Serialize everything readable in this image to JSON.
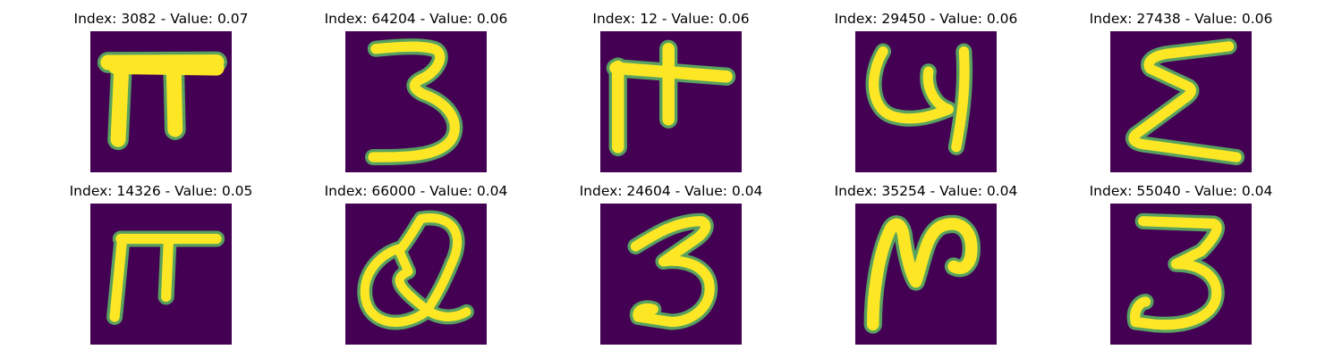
{
  "colors": {
    "background": "#440154",
    "low": "#21918c",
    "mid": "#5ec962",
    "high": "#fde725"
  },
  "tiles": [
    {
      "title": "Index: 3082 - Value: 0.07",
      "glyph": "pi-shape"
    },
    {
      "title": "Index: 64204 - Value: 0.06",
      "glyph": "three-shape"
    },
    {
      "title": "Index: 12 - Value: 0.06",
      "glyph": "pi-cross-shape"
    },
    {
      "title": "Index: 29450 - Value: 0.06",
      "glyph": "u-shape"
    },
    {
      "title": "Index: 27438 - Value: 0.06",
      "glyph": "sigma-shape"
    },
    {
      "title": "Index: 14326 - Value: 0.05",
      "glyph": "pi-shape"
    },
    {
      "title": "Index: 66000 - Value: 0.04",
      "glyph": "q-shape"
    },
    {
      "title": "Index: 24604 - Value: 0.04",
      "glyph": "three-shape"
    },
    {
      "title": "Index: 35254 - Value: 0.04",
      "glyph": "n-shape"
    },
    {
      "title": "Index: 55040 - Value: 0.04",
      "glyph": "three-shape"
    }
  ]
}
